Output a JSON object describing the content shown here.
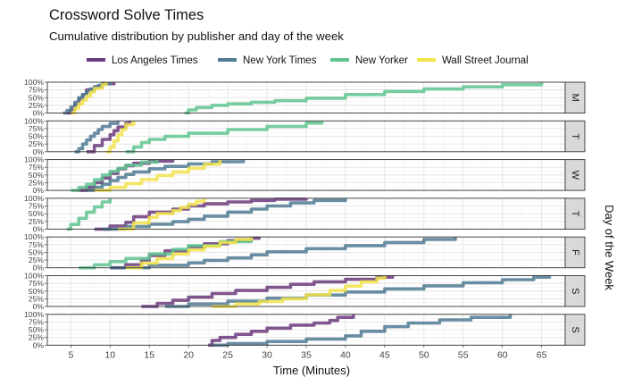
{
  "chart_data": {
    "type": "line",
    "title": "Crossword Solve Times",
    "subtitle": "Cumulative distribution by publisher and day of the week",
    "xlabel": "Time (Minutes)",
    "ylabel": "Day of the Week",
    "xlim": [
      2,
      68
    ],
    "ylim": [
      0,
      1
    ],
    "x_ticks": [
      5,
      10,
      15,
      20,
      25,
      30,
      35,
      40,
      45,
      50,
      55,
      60,
      65
    ],
    "y_ticks": [
      0,
      0.25,
      0.5,
      0.75,
      1
    ],
    "y_tick_labels": [
      "0%",
      "25%",
      "50%",
      "75%",
      "100%"
    ],
    "legend_position": "top",
    "grid": true,
    "series_info": [
      {
        "name": "Los Angeles Times",
        "color": "#6b3a7d"
      },
      {
        "name": "New York Times",
        "color": "#4f7a93"
      },
      {
        "name": "New Yorker",
        "color": "#5fc48f"
      },
      {
        "name": "Wall Street Journal",
        "color": "#f1e34a"
      }
    ],
    "panels": [
      {
        "label": "M",
        "series": [
          {
            "name": "Los Angeles Times",
            "x": [
              4.5,
              5,
              5.5,
              6,
              6.5,
              7,
              8,
              9,
              10.5
            ],
            "y": [
              0,
              0.12,
              0.3,
              0.45,
              0.6,
              0.75,
              0.85,
              0.95,
              1
            ]
          },
          {
            "name": "New York Times",
            "x": [
              4,
              4.5,
              5,
              5.5,
              6,
              6.5,
              7,
              7.5,
              8,
              8.5,
              9,
              10
            ],
            "y": [
              0,
              0.08,
              0.2,
              0.35,
              0.5,
              0.6,
              0.7,
              0.78,
              0.85,
              0.9,
              0.95,
              1
            ]
          },
          {
            "name": "New Yorker",
            "x": [
              19.5,
              20,
              21,
              23,
              25,
              28,
              31,
              35,
              40,
              45,
              50,
              55,
              60,
              65
            ],
            "y": [
              0,
              0.1,
              0.18,
              0.25,
              0.3,
              0.35,
              0.4,
              0.48,
              0.6,
              0.7,
              0.78,
              0.85,
              0.92,
              1
            ]
          },
          {
            "name": "Wall Street Journal",
            "x": [
              5,
              5.5,
              6,
              6.5,
              7,
              7.5,
              8,
              9,
              9.5
            ],
            "y": [
              0,
              0.15,
              0.3,
              0.42,
              0.55,
              0.68,
              0.8,
              0.92,
              1
            ]
          }
        ]
      },
      {
        "label": "T",
        "series": [
          {
            "name": "Los Angeles Times",
            "x": [
              7,
              8,
              9,
              10,
              10.5,
              11,
              12,
              12.5
            ],
            "y": [
              0,
              0.2,
              0.4,
              0.55,
              0.68,
              0.8,
              0.92,
              1
            ]
          },
          {
            "name": "New York Times",
            "x": [
              5.5,
              6,
              6.5,
              7,
              7.5,
              8,
              8.5,
              9,
              10,
              11
            ],
            "y": [
              0,
              0.1,
              0.25,
              0.38,
              0.5,
              0.6,
              0.72,
              0.82,
              0.92,
              1
            ]
          },
          {
            "name": "New Yorker",
            "x": [
              12,
              13,
              14,
              15,
              17,
              20,
              25,
              30,
              35,
              37
            ],
            "y": [
              0,
              0.15,
              0.3,
              0.4,
              0.5,
              0.6,
              0.72,
              0.82,
              0.93,
              1
            ]
          },
          {
            "name": "Wall Street Journal",
            "x": [
              9.5,
              10,
              10.5,
              11,
              11.5,
              12,
              13
            ],
            "y": [
              0,
              0.15,
              0.35,
              0.55,
              0.72,
              0.88,
              1
            ]
          }
        ]
      },
      {
        "label": "W",
        "series": [
          {
            "name": "Los Angeles Times",
            "x": [
              6,
              7,
              8,
              9,
              10,
              11,
              12,
              13,
              15,
              18
            ],
            "y": [
              0,
              0.1,
              0.25,
              0.4,
              0.55,
              0.7,
              0.8,
              0.88,
              0.95,
              1
            ]
          },
          {
            "name": "New York Times",
            "x": [
              7,
              8,
              9,
              10,
              11,
              12,
              13,
              15,
              17,
              20,
              23,
              27
            ],
            "y": [
              0,
              0.1,
              0.2,
              0.32,
              0.42,
              0.52,
              0.6,
              0.7,
              0.78,
              0.86,
              0.93,
              1
            ]
          },
          {
            "name": "New Yorker",
            "x": [
              5,
              6,
              7,
              8,
              9,
              10,
              11,
              12,
              14,
              16
            ],
            "y": [
              0,
              0.1,
              0.2,
              0.35,
              0.5,
              0.62,
              0.72,
              0.82,
              0.92,
              1
            ]
          },
          {
            "name": "Wall Street Journal",
            "x": [
              8,
              10,
              12,
              14,
              16,
              18,
              20,
              22,
              24
            ],
            "y": [
              0,
              0.1,
              0.22,
              0.35,
              0.48,
              0.6,
              0.72,
              0.85,
              1
            ]
          }
        ]
      },
      {
        "label": "T",
        "series": [
          {
            "name": "Los Angeles Times",
            "x": [
              8,
              10,
              12,
              13,
              15,
              18,
              20,
              22,
              25,
              28,
              31,
              35
            ],
            "y": [
              0,
              0.1,
              0.22,
              0.4,
              0.55,
              0.65,
              0.75,
              0.82,
              0.88,
              0.93,
              0.97,
              1
            ]
          },
          {
            "name": "New York Times",
            "x": [
              9,
              12,
              15,
              18,
              20,
              22,
              25,
              28,
              30,
              33,
              36,
              40
            ],
            "y": [
              0,
              0.08,
              0.16,
              0.24,
              0.32,
              0.42,
              0.55,
              0.65,
              0.75,
              0.85,
              0.93,
              1
            ]
          },
          {
            "name": "New Yorker",
            "x": [
              4.5,
              5,
              6,
              7,
              8,
              9,
              10
            ],
            "y": [
              0,
              0.15,
              0.35,
              0.55,
              0.72,
              0.88,
              1
            ]
          },
          {
            "name": "Wall Street Journal",
            "x": [
              11,
              13,
              15,
              16,
              18,
              19,
              20,
              21,
              22
            ],
            "y": [
              0,
              0.2,
              0.38,
              0.5,
              0.6,
              0.7,
              0.8,
              0.9,
              1
            ]
          }
        ]
      },
      {
        "label": "F",
        "series": [
          {
            "name": "Los Angeles Times",
            "x": [
              10,
              12,
              14,
              15,
              17,
              20,
              22,
              25,
              28,
              29
            ],
            "y": [
              0,
              0.1,
              0.25,
              0.4,
              0.55,
              0.68,
              0.78,
              0.88,
              0.96,
              1
            ]
          },
          {
            "name": "New York Times",
            "x": [
              10,
              15,
              20,
              22,
              25,
              28,
              30,
              35,
              40,
              45,
              50,
              54
            ],
            "y": [
              0,
              0.08,
              0.16,
              0.24,
              0.32,
              0.42,
              0.52,
              0.62,
              0.72,
              0.82,
              0.92,
              1
            ]
          },
          {
            "name": "New Yorker",
            "x": [
              6,
              8,
              10,
              12,
              15,
              18,
              20,
              24,
              28
            ],
            "y": [
              0,
              0.1,
              0.2,
              0.3,
              0.45,
              0.6,
              0.72,
              0.85,
              1
            ]
          },
          {
            "name": "Wall Street Journal",
            "x": [
              12,
              14,
              16,
              18,
              20,
              22,
              24,
              26,
              28
            ],
            "y": [
              0,
              0.15,
              0.3,
              0.45,
              0.58,
              0.7,
              0.82,
              0.92,
              1
            ]
          }
        ]
      },
      {
        "label": "S",
        "series": [
          {
            "name": "Los Angeles Times",
            "x": [
              14,
              16,
              18,
              20,
              23,
              26,
              30,
              33,
              36,
              40,
              44,
              46
            ],
            "y": [
              0,
              0.1,
              0.2,
              0.3,
              0.42,
              0.52,
              0.62,
              0.72,
              0.8,
              0.88,
              0.95,
              1
            ]
          },
          {
            "name": "New York Times",
            "x": [
              17,
              20,
              25,
              30,
              35,
              40,
              45,
              50,
              55,
              60,
              64,
              66
            ],
            "y": [
              0,
              0.08,
              0.17,
              0.27,
              0.37,
              0.47,
              0.57,
              0.67,
              0.77,
              0.87,
              0.95,
              1
            ]
          },
          {
            "name": "Wall Street Journal",
            "x": [
              23,
              26,
              29,
              32,
              35,
              38,
              40,
              42,
              44,
              45
            ],
            "y": [
              0,
              0.08,
              0.16,
              0.25,
              0.38,
              0.52,
              0.66,
              0.8,
              0.92,
              1
            ]
          }
        ]
      },
      {
        "label": "S",
        "series": [
          {
            "name": "Los Angeles Times",
            "x": [
              22.5,
              23,
              24,
              26,
              28,
              30,
              33,
              36,
              38,
              39,
              41
            ],
            "y": [
              0,
              0.15,
              0.25,
              0.35,
              0.45,
              0.55,
              0.65,
              0.72,
              0.8,
              0.9,
              1
            ]
          },
          {
            "name": "New York Times",
            "x": [
              23,
              25,
              30,
              35,
              40,
              42,
              45,
              48,
              52,
              56,
              61
            ],
            "y": [
              0,
              0.05,
              0.12,
              0.2,
              0.3,
              0.45,
              0.6,
              0.72,
              0.82,
              0.9,
              1
            ]
          }
        ]
      }
    ]
  }
}
